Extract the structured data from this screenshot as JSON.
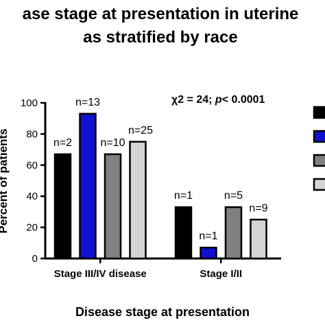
{
  "chart_data": {
    "type": "bar",
    "title_lines": [
      "ase stage at presentation in uterine",
      "as stratified by race"
    ],
    "xlabel": "Disease stage at presentation",
    "ylabel": "Percent of patients",
    "ylim": [
      0,
      100
    ],
    "yticks": [
      0,
      20,
      40,
      60,
      80,
      100
    ],
    "categories": [
      "Stage III/IV disease",
      "Stage I/II"
    ],
    "annotation": {
      "prefix": "χ2 = 24; ",
      "p": "p",
      "suffix": "< 0.0001"
    },
    "series": [
      {
        "color": "#000000",
        "values": [
          67,
          33
        ],
        "labels": [
          "n=2",
          "n=1"
        ]
      },
      {
        "color": "#1010d0",
        "values": [
          93,
          7
        ],
        "labels": [
          "n=13",
          "n=1"
        ]
      },
      {
        "color": "#808080",
        "values": [
          67,
          33
        ],
        "labels": [
          "n=10",
          "n=5"
        ]
      },
      {
        "color": "#d4d4d4",
        "values": [
          75,
          25
        ],
        "labels": [
          "n=25",
          "n=9"
        ]
      }
    ],
    "legend_position": "right"
  }
}
